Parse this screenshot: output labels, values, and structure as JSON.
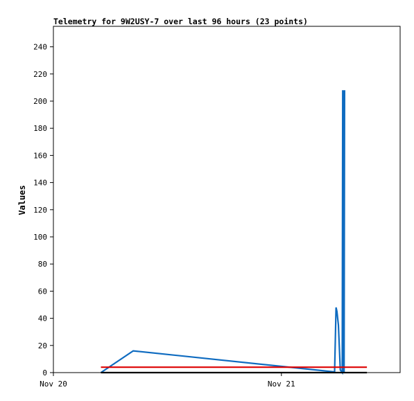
{
  "chart_data": {
    "type": "line",
    "title": "Telemetry for 9W2USY-7 over last 96 hours (23 points)",
    "ylabel": "Values",
    "xlabel": "",
    "ylim": [
      0,
      256
    ],
    "y_ticks": [
      0,
      20,
      40,
      60,
      80,
      100,
      120,
      140,
      160,
      180,
      200,
      220,
      240
    ],
    "x_ticks": [
      {
        "label": "Nov 20",
        "hours": 0
      },
      {
        "label": "Nov 21",
        "hours": 24
      }
    ],
    "xlim_hours": [
      0,
      36.5
    ],
    "grid": false,
    "legend": "none",
    "series": [
      {
        "color": "#0e6bc0",
        "points": [
          {
            "hours": 5.0,
            "value": 0
          },
          {
            "hours": 8.4,
            "value": 16
          },
          {
            "hours": 29.6,
            "value": 0.5
          },
          {
            "hours": 29.75,
            "value": 48
          },
          {
            "hours": 29.85,
            "value": 45
          },
          {
            "hours": 30.0,
            "value": 35
          },
          {
            "hours": 30.2,
            "value": 2
          },
          {
            "hours": 30.4,
            "value": 0
          },
          {
            "hours": 30.45,
            "value": 208
          },
          {
            "hours": 30.5,
            "value": 0
          },
          {
            "hours": 30.55,
            "value": 208
          },
          {
            "hours": 30.6,
            "value": 0
          },
          {
            "hours": 30.65,
            "value": 208
          }
        ]
      },
      {
        "color": "#dd0000",
        "points": [
          {
            "hours": 5.0,
            "value": 4
          },
          {
            "hours": 33.0,
            "value": 4
          }
        ]
      },
      {
        "color": "#000000",
        "points": [
          {
            "hours": 5.0,
            "value": 0
          },
          {
            "hours": 33.0,
            "value": 0
          }
        ]
      }
    ]
  }
}
